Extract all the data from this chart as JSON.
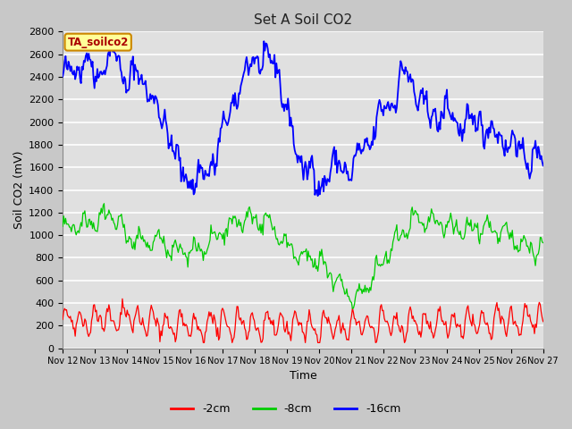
{
  "title": "Set A Soil CO2",
  "xlabel": "Time",
  "ylabel": "Soil CO2 (mV)",
  "ylim": [
    0,
    2800
  ],
  "yticks": [
    0,
    200,
    400,
    600,
    800,
    1000,
    1200,
    1400,
    1600,
    1800,
    2000,
    2200,
    2400,
    2600,
    2800
  ],
  "xtick_labels": [
    "Nov 12",
    "Nov 13",
    "Nov 14",
    "Nov 15",
    "Nov 16",
    "Nov 17",
    "Nov 18",
    "Nov 19",
    "Nov 20",
    "Nov 21",
    "Nov 22",
    "Nov 23",
    "Nov 24",
    "Nov 25",
    "Nov 26",
    "Nov 27"
  ],
  "legend_labels": [
    "-2cm",
    "-8cm",
    "-16cm"
  ],
  "legend_colors": [
    "#ff0000",
    "#00cc00",
    "#0000ff"
  ],
  "line_colors": [
    "#ff0000",
    "#00cc00",
    "#0000ff"
  ],
  "fig_bg_color": "#c8c8c8",
  "plot_bg_color": "#e0e0e0",
  "grid_color": "#ffffff",
  "watermark_text": "TA_soilco2",
  "watermark_bg": "#ffff99",
  "watermark_border": "#cc8800",
  "watermark_text_color": "#aa0000",
  "n_points": 500,
  "seed": 42
}
